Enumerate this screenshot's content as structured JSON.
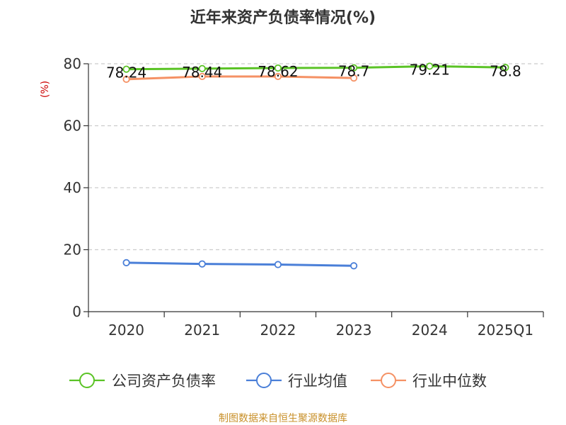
{
  "chart_data": {
    "type": "line",
    "title": "近年来资产负债率情况(%)",
    "ylabel": "(%)",
    "xlabel": "",
    "categories": [
      "2020",
      "2021",
      "2022",
      "2023",
      "2024",
      "2025Q1"
    ],
    "yticks": [
      "0",
      "20",
      "40",
      "60",
      "80"
    ],
    "ylim": [
      0,
      80
    ],
    "grid": true,
    "legend_position": "bottom",
    "series": [
      {
        "name": "公司资产负债率",
        "color": "#5ac325",
        "values": [
          78.24,
          78.44,
          78.62,
          78.7,
          79.21,
          78.8
        ],
        "labels": [
          "78.24",
          "78.44",
          "78.62",
          "78.7",
          "79.21",
          "78.8"
        ]
      },
      {
        "name": "行业均值",
        "color": "#4a7fd8",
        "values": [
          15.8,
          15.4,
          15.2,
          14.8,
          null,
          null
        ]
      },
      {
        "name": "行业中位数",
        "color": "#f59164",
        "values": [
          75.0,
          75.9,
          75.9,
          75.4,
          null,
          null
        ]
      }
    ],
    "source": "制图数据来自恒生聚源数据库"
  }
}
